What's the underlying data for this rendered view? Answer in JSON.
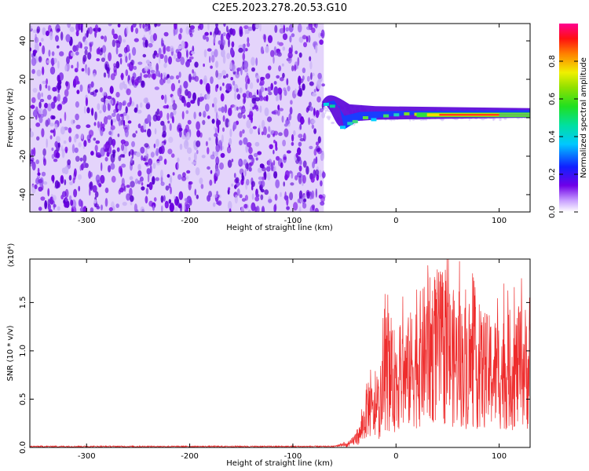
{
  "title": "C2E5.2023.278.20.53.G10",
  "colors": {
    "spectrogram_low": "#6a00e0",
    "snr_line": "#ee2c2c",
    "axis": "#000000"
  },
  "chart_data": [
    {
      "type": "heatmap",
      "name": "spectrogram",
      "xlabel": "Height of straight line (km)",
      "ylabel": "Frequency (Hz)",
      "xlim": [
        -355,
        130
      ],
      "ylim": [
        -49,
        49
      ],
      "x_ticks": [
        -300,
        -200,
        -100,
        0,
        100
      ],
      "y_ticks": [
        -40,
        -20,
        0,
        20,
        40
      ],
      "noise_region_x": [
        -355,
        -70
      ],
      "tone_frequency_hz": 1.5,
      "colorbar": {
        "label": "Normalized spectral amplitude",
        "range": [
          0.0,
          1.0
        ],
        "ticks": [
          0.0,
          0.2,
          0.4,
          0.6,
          0.8
        ],
        "colormap": "rainbow (white-violet-blue-cyan-green-yellow-red-magenta)"
      }
    },
    {
      "type": "line",
      "name": "snr",
      "xlabel": "Height of straight line (km)",
      "ylabel": "SNR (10 * v/v)",
      "y_multiplier": "(x10⁴)",
      "xlim": [
        -355,
        130
      ],
      "ylim": [
        0.0,
        1.95
      ],
      "x_ticks": [
        -300,
        -200,
        -100,
        0,
        100
      ],
      "y_ticks": [
        0.0,
        0.5,
        1.0,
        1.5
      ],
      "envelope": {
        "x": [
          -355,
          -60,
          -45,
          -35,
          -30,
          -27,
          -22,
          -15,
          -10,
          -5,
          0,
          10,
          20,
          30,
          40,
          50,
          60,
          70,
          80,
          90,
          100,
          110,
          120,
          125,
          130
        ],
        "y": [
          0.01,
          0.01,
          0.05,
          0.2,
          0.45,
          0.65,
          0.5,
          0.6,
          1.2,
          1.0,
          1.05,
          1.1,
          1.3,
          1.45,
          1.55,
          1.45,
          1.3,
          1.25,
          1.2,
          1.15,
          1.15,
          1.15,
          1.2,
          1.25,
          1.1
        ]
      }
    }
  ]
}
